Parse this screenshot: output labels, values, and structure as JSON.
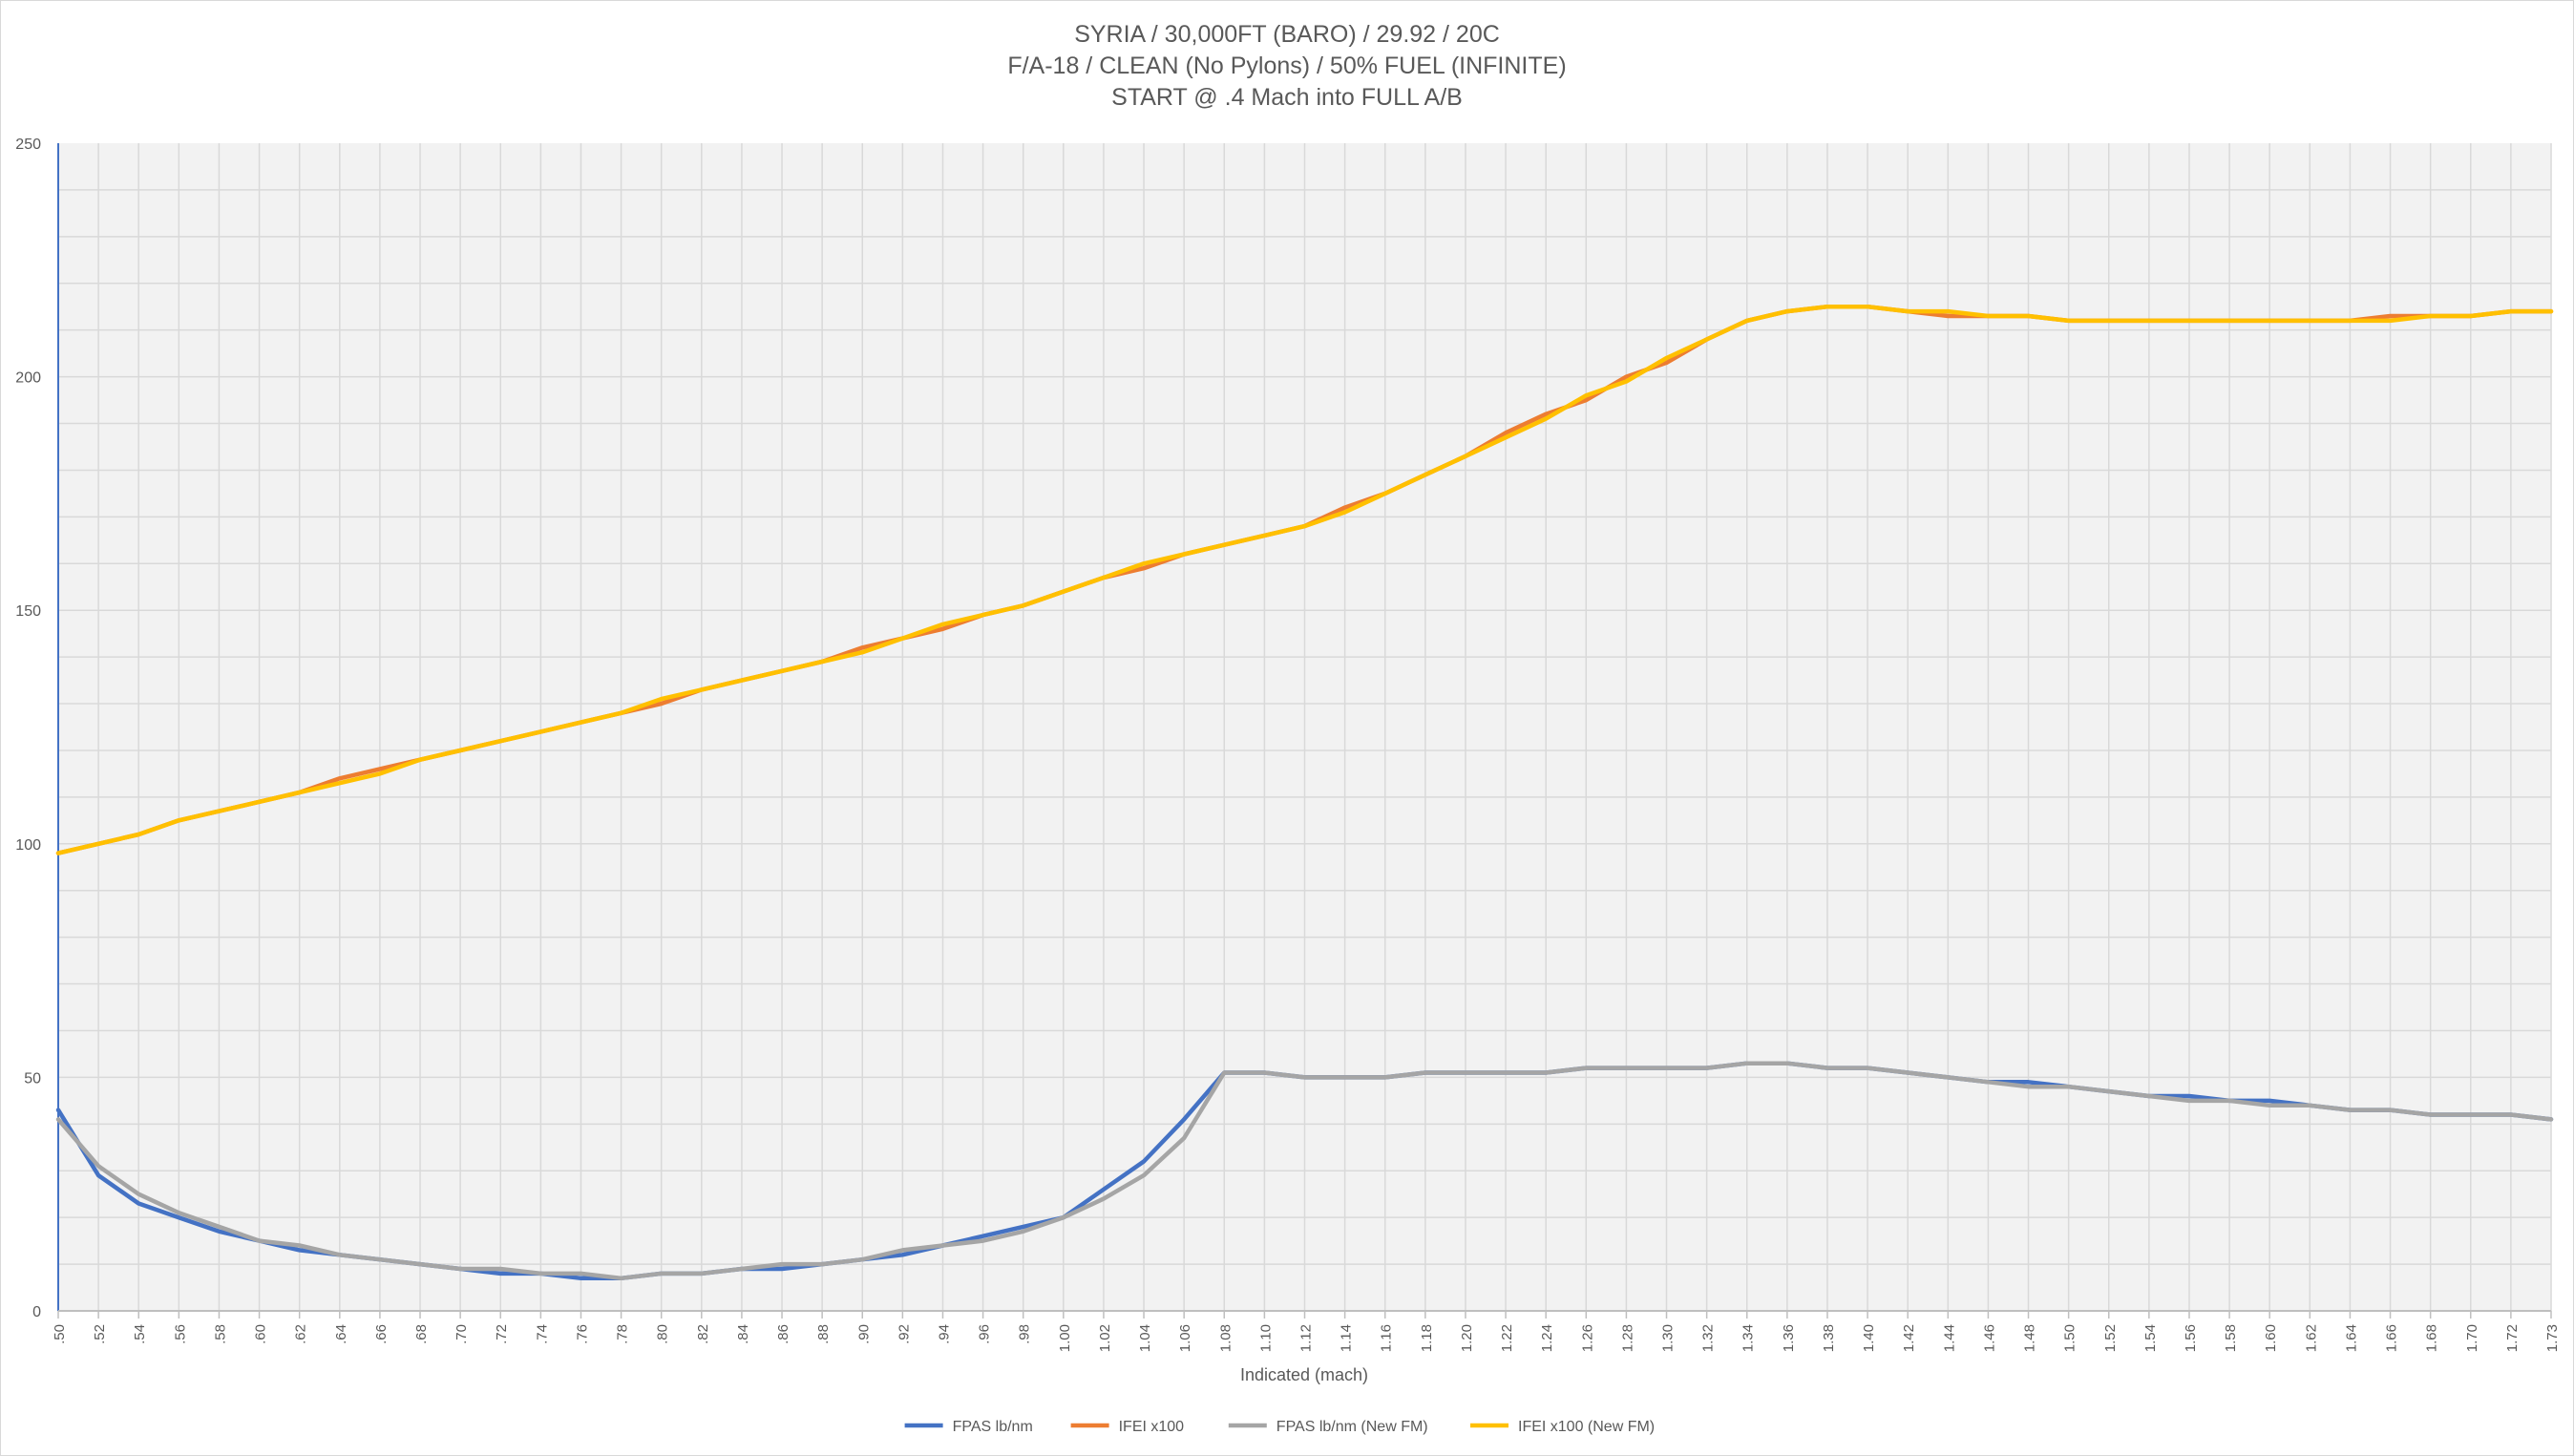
{
  "chart_data": {
    "type": "line",
    "title_lines": [
      "SYRIA / 30,000FT (BARO) / 29.92 / 20C",
      "F/A-18 / CLEAN (No Pylons) / 50% FUEL (INFINITE)",
      "START @ .4 Mach into FULL A/B"
    ],
    "xlabel": "Indicated (mach)",
    "ylabel": "",
    "ylim": [
      0,
      250
    ],
    "y_ticks": [
      "0",
      "50",
      "100",
      "150",
      "200",
      "250"
    ],
    "categories": [
      ".50",
      ".52",
      ".54",
      ".56",
      ".58",
      ".60",
      ".62",
      ".64",
      ".66",
      ".68",
      ".70",
      ".72",
      ".74",
      ".76",
      ".78",
      ".80",
      ".82",
      ".84",
      ".86",
      ".88",
      ".90",
      ".92",
      ".94",
      ".96",
      ".98",
      "1.00",
      "1.02",
      "1.04",
      "1.06",
      "1.08",
      "1.10",
      "1.12",
      "1.14",
      "1.16",
      "1.18",
      "1.20",
      "1.22",
      "1.24",
      "1.26",
      "1.28",
      "1.30",
      "1.32",
      "1.34",
      "1.36",
      "1.38",
      "1.40",
      "1.42",
      "1.44",
      "1.46",
      "1.48",
      "1.50",
      "1.52",
      "1.54",
      "1.56",
      "1.58",
      "1.60",
      "1.62",
      "1.64",
      "1.66",
      "1.68",
      "1.70",
      "1.72",
      "1.73"
    ],
    "grid": true,
    "legend_position": "bottom",
    "series": [
      {
        "name": "FPAS lb/nm",
        "color": "#4472c4",
        "values": [
          43,
          29,
          23,
          20,
          17,
          15,
          13,
          12,
          11,
          10,
          9,
          8,
          8,
          7,
          7,
          8,
          8,
          9,
          9,
          10,
          11,
          12,
          14,
          16,
          18,
          20,
          26,
          32,
          41,
          51,
          51,
          50,
          50,
          50,
          51,
          51,
          51,
          51,
          52,
          52,
          52,
          52,
          53,
          53,
          52,
          52,
          51,
          50,
          49,
          49,
          48,
          47,
          46,
          46,
          45,
          45,
          44,
          43,
          43,
          42,
          42,
          42,
          41
        ]
      },
      {
        "name": "IFEI x100",
        "color": "#ed7d31",
        "values": [
          98,
          100,
          102,
          105,
          107,
          109,
          111,
          114,
          116,
          118,
          120,
          122,
          124,
          126,
          128,
          130,
          133,
          135,
          137,
          139,
          142,
          144,
          146,
          149,
          151,
          154,
          157,
          159,
          162,
          164,
          166,
          168,
          172,
          175,
          179,
          183,
          188,
          192,
          195,
          200,
          203,
          208,
          212,
          214,
          215,
          215,
          214,
          213,
          213,
          213,
          212,
          212,
          212,
          212,
          212,
          212,
          212,
          212,
          213,
          213,
          213,
          214,
          214
        ]
      },
      {
        "name": "FPAS lb/nm (New FM)",
        "color": "#a5a5a5",
        "values": [
          41,
          31,
          25,
          21,
          18,
          15,
          14,
          12,
          11,
          10,
          9,
          9,
          8,
          8,
          7,
          8,
          8,
          9,
          10,
          10,
          11,
          13,
          14,
          15,
          17,
          20,
          24,
          29,
          37,
          51,
          51,
          50,
          50,
          50,
          51,
          51,
          51,
          51,
          52,
          52,
          52,
          52,
          53,
          53,
          52,
          52,
          51,
          50,
          49,
          48,
          48,
          47,
          46,
          45,
          45,
          44,
          44,
          43,
          43,
          42,
          42,
          42,
          41
        ]
      },
      {
        "name": "IFEI x100 (New FM)",
        "color": "#ffc000",
        "values": [
          98,
          100,
          102,
          105,
          107,
          109,
          111,
          113,
          115,
          118,
          120,
          122,
          124,
          126,
          128,
          131,
          133,
          135,
          137,
          139,
          141,
          144,
          147,
          149,
          151,
          154,
          157,
          160,
          162,
          164,
          166,
          168,
          171,
          175,
          179,
          183,
          187,
          191,
          196,
          199,
          204,
          208,
          212,
          214,
          215,
          215,
          214,
          214,
          213,
          213,
          212,
          212,
          212,
          212,
          212,
          212,
          212,
          212,
          212,
          213,
          213,
          214,
          214
        ]
      }
    ]
  }
}
